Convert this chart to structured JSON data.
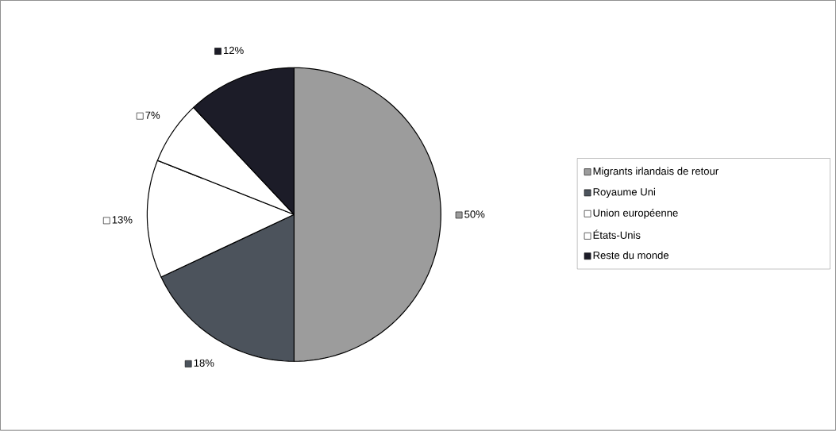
{
  "chart_data": {
    "type": "pie",
    "categories": [
      "Migrants irlandais de retour",
      "Royaume Uni",
      "Union européenne",
      "États-Unis",
      "Reste du monde"
    ],
    "values": [
      50,
      18,
      13,
      7,
      12
    ],
    "colors": [
      "#9c9c9c",
      "#4c535c",
      "#ffffff",
      "#ffffff",
      "#1c1c28"
    ],
    "value_labels": [
      "50%",
      "18%",
      "13%",
      "7%",
      "12%"
    ],
    "legend": "right"
  }
}
